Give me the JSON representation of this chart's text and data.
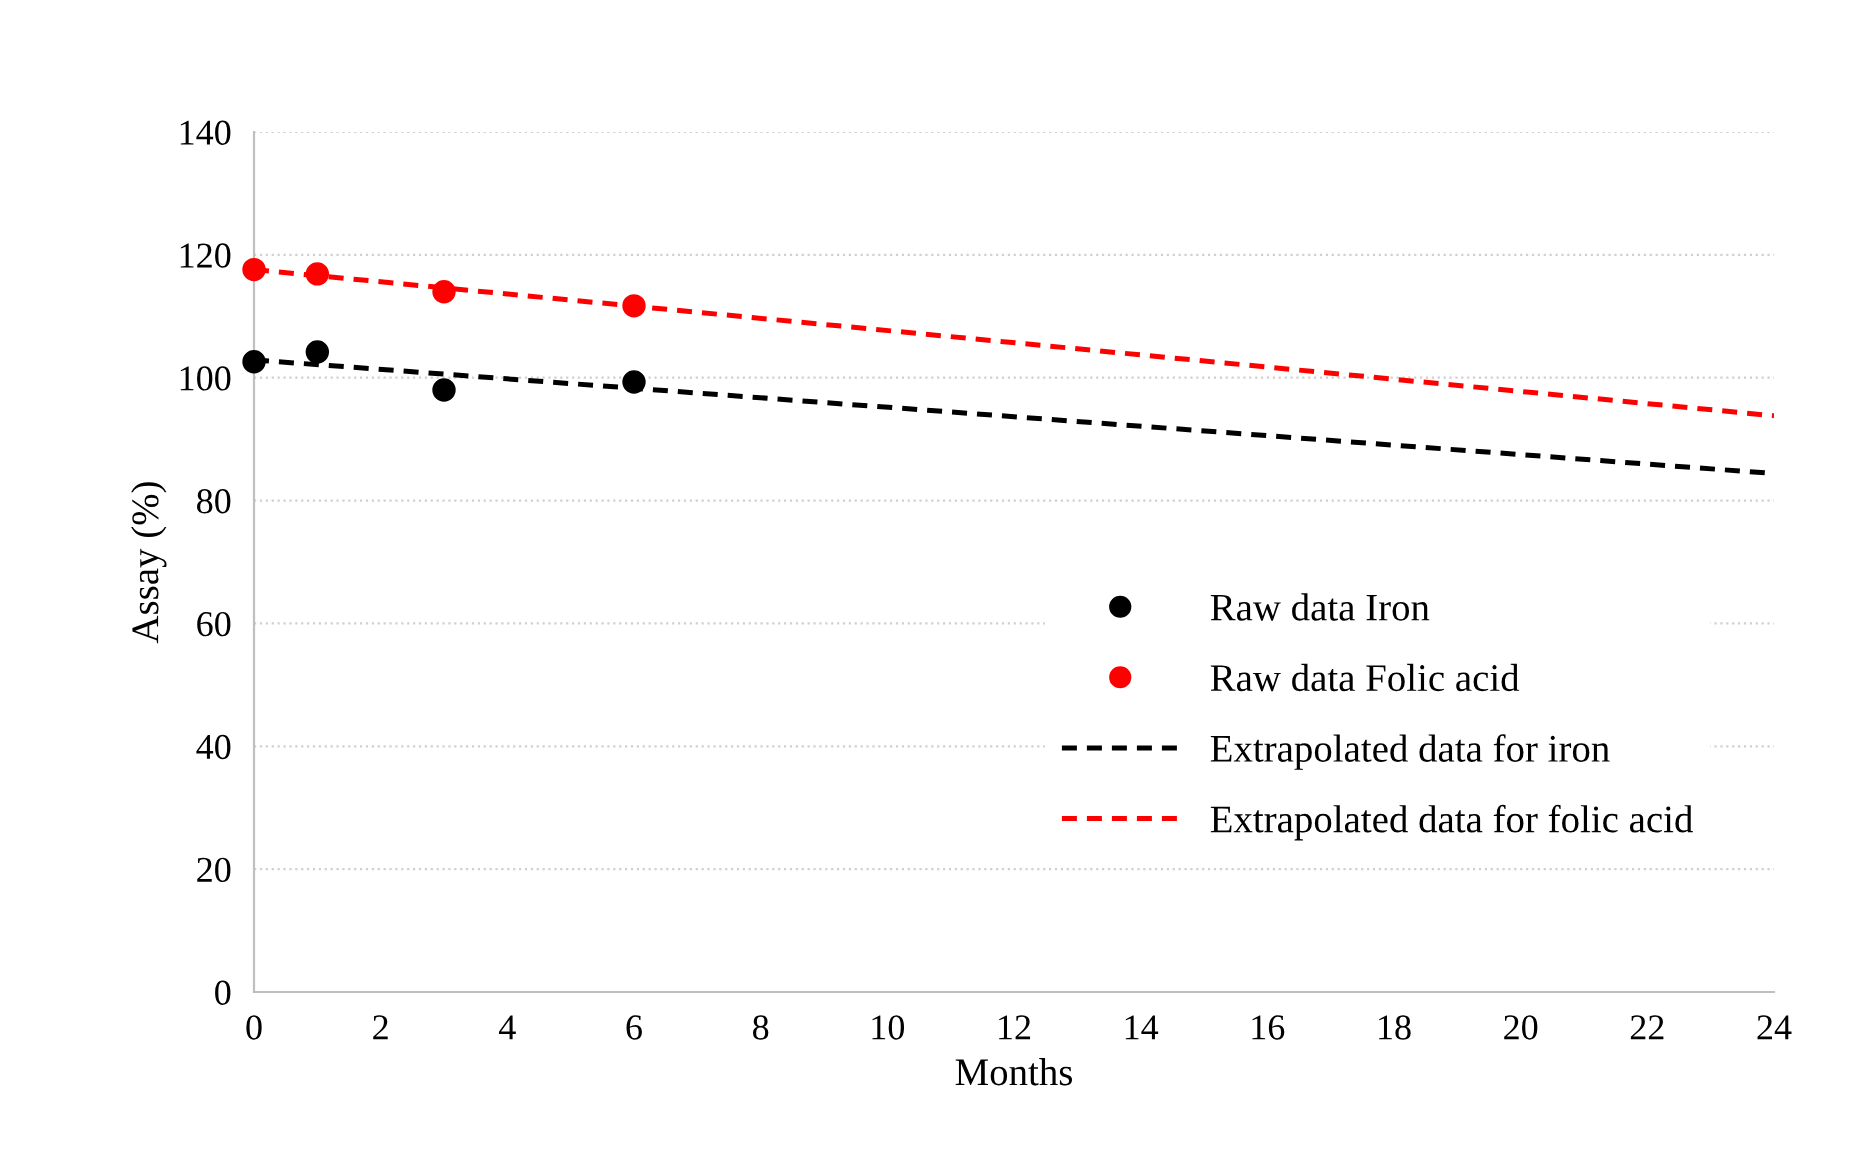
{
  "chart_data": {
    "type": "scatter",
    "xlabel": "Months",
    "ylabel": "Assay (%)",
    "xlim": [
      0,
      24
    ],
    "xticks": [
      0,
      2,
      4,
      6,
      8,
      10,
      12,
      14,
      16,
      18,
      20,
      22,
      24
    ],
    "ylim": [
      0,
      140
    ],
    "yticks": [
      0,
      20,
      40,
      60,
      80,
      100,
      120,
      140
    ],
    "grid": "y",
    "legend": "right",
    "marker": "circle",
    "series": [
      {
        "name": "Raw data Iron",
        "color": "#000000",
        "x": [
          0,
          1,
          3,
          6
        ],
        "values": [
          102.6,
          104.2,
          98.0,
          99.3
        ]
      },
      {
        "name": "Raw data Folic acid",
        "color": "#ff0000",
        "x": [
          0,
          1,
          3,
          6
        ],
        "values": [
          117.6,
          116.9,
          114.0,
          111.7
        ]
      },
      {
        "name": "Extrapolated data for iron",
        "type": "line",
        "line_style": "dashed",
        "marker": "none",
        "color": "#000000",
        "x": [
          0,
          24
        ],
        "values": [
          102.9,
          84.4
        ]
      },
      {
        "name": "Extrapolated data for folic acid",
        "type": "line",
        "line_style": "dashed",
        "marker": "none",
        "color": "#ff0000",
        "x": [
          0,
          24
        ],
        "values": [
          117.6,
          93.8
        ]
      }
    ]
  }
}
